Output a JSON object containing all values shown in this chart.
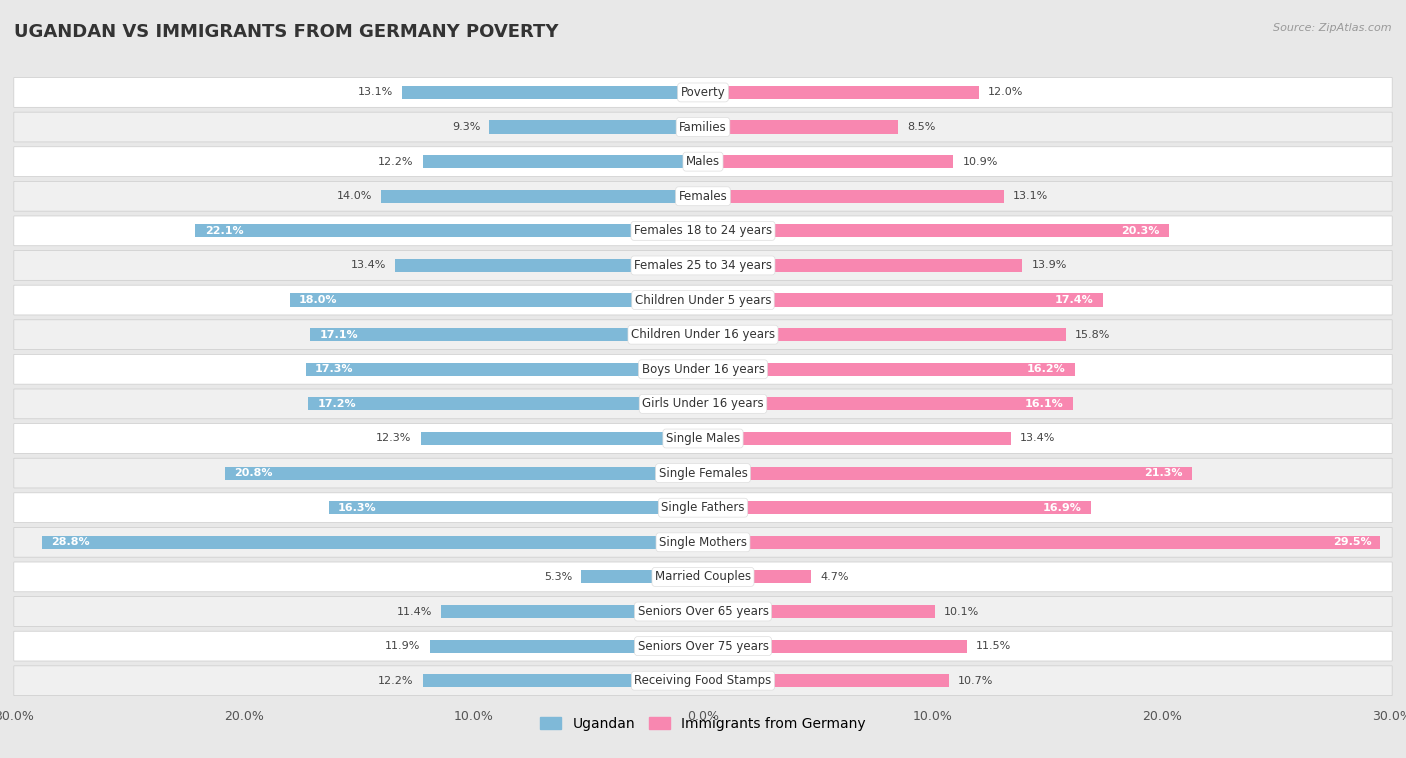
{
  "title": "UGANDAN VS IMMIGRANTS FROM GERMANY POVERTY",
  "source": "Source: ZipAtlas.com",
  "categories": [
    "Poverty",
    "Families",
    "Males",
    "Females",
    "Females 18 to 24 years",
    "Females 25 to 34 years",
    "Children Under 5 years",
    "Children Under 16 years",
    "Boys Under 16 years",
    "Girls Under 16 years",
    "Single Males",
    "Single Females",
    "Single Fathers",
    "Single Mothers",
    "Married Couples",
    "Seniors Over 65 years",
    "Seniors Over 75 years",
    "Receiving Food Stamps"
  ],
  "ugandan": [
    13.1,
    9.3,
    12.2,
    14.0,
    22.1,
    13.4,
    18.0,
    17.1,
    17.3,
    17.2,
    12.3,
    20.8,
    16.3,
    28.8,
    5.3,
    11.4,
    11.9,
    12.2
  ],
  "germany": [
    12.0,
    8.5,
    10.9,
    13.1,
    20.3,
    13.9,
    17.4,
    15.8,
    16.2,
    16.1,
    13.4,
    21.3,
    16.9,
    29.5,
    4.7,
    10.1,
    11.5,
    10.7
  ],
  "ugandan_color": "#7fb9d8",
  "germany_color": "#f887b0",
  "ugandan_label": "Ugandan",
  "germany_label": "Immigrants from Germany",
  "axis_max": 30.0,
  "background_color": "#e8e8e8",
  "row_bg_color": "#ffffff",
  "row_alt_color": "#f0f0f0",
  "title_fontsize": 13,
  "label_fontsize": 8.5,
  "value_fontsize": 8.0,
  "inside_label_threshold": 16.0
}
